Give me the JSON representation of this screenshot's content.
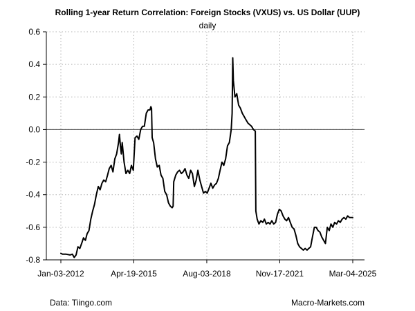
{
  "chart_data": {
    "type": "line",
    "title": "Rolling 1-year Return Correlation: Foreign Stocks (VXUS) vs. US Dollar (UUP)",
    "subtitle": "daily",
    "xlabel": "",
    "ylabel": "",
    "x_axis_type": "date",
    "xlim": [
      "2012-01-03",
      "2025-03-04"
    ],
    "ylim": [
      -0.8,
      0.6
    ],
    "y_ticks": [
      0.6,
      0.4,
      0.2,
      0.0,
      -0.2,
      -0.4,
      -0.6,
      -0.8
    ],
    "x_ticks": [
      "2012-01-03",
      "2015-04-19",
      "2018-08-03",
      "2021-11-17",
      "2025-03-04"
    ],
    "x_tick_labels": [
      "Jan-03-2012",
      "Apr-19-2015",
      "Aug-03-2018",
      "Nov-17-2021",
      "Mar-04-2025"
    ],
    "y_tick_labels": [
      "0.6",
      "0.4",
      "0.2",
      "0.0",
      "-0.2",
      "-0.4",
      "-0.6",
      "-0.8"
    ],
    "grid": true,
    "zero_line": true,
    "series": [
      {
        "points": [
          [
            "2012-01-03",
            -0.76
          ],
          [
            "2012-02-01",
            -0.765
          ],
          [
            "2012-04-01",
            -0.765
          ],
          [
            "2012-06-01",
            -0.77
          ],
          [
            "2012-07-10",
            -0.765
          ],
          [
            "2012-08-10",
            -0.785
          ],
          [
            "2012-09-10",
            -0.77
          ],
          [
            "2012-10-10",
            -0.72
          ],
          [
            "2012-11-10",
            -0.73
          ],
          [
            "2012-12-10",
            -0.7
          ],
          [
            "2013-01-10",
            -0.665
          ],
          [
            "2013-02-10",
            -0.68
          ],
          [
            "2013-03-10",
            -0.64
          ],
          [
            "2013-04-10",
            -0.62
          ],
          [
            "2013-05-10",
            -0.55
          ],
          [
            "2013-06-10",
            -0.5
          ],
          [
            "2013-07-10",
            -0.46
          ],
          [
            "2013-08-10",
            -0.4
          ],
          [
            "2013-09-10",
            -0.35
          ],
          [
            "2013-10-10",
            -0.37
          ],
          [
            "2013-11-10",
            -0.33
          ],
          [
            "2013-12-10",
            -0.31
          ],
          [
            "2014-01-10",
            -0.32
          ],
          [
            "2014-02-10",
            -0.28
          ],
          [
            "2014-03-10",
            -0.24
          ],
          [
            "2014-04-10",
            -0.22
          ],
          [
            "2014-05-10",
            -0.26
          ],
          [
            "2014-06-10",
            -0.18
          ],
          [
            "2014-07-10",
            -0.15
          ],
          [
            "2014-08-10",
            -0.08
          ],
          [
            "2014-08-25",
            -0.03
          ],
          [
            "2014-09-10",
            -0.1
          ],
          [
            "2014-09-25",
            -0.15
          ],
          [
            "2014-10-10",
            -0.08
          ],
          [
            "2014-11-10",
            -0.2
          ],
          [
            "2014-12-10",
            -0.27
          ],
          [
            "2015-01-10",
            -0.25
          ],
          [
            "2015-02-10",
            -0.27
          ],
          [
            "2015-03-10",
            -0.22
          ],
          [
            "2015-04-10",
            -0.25
          ],
          [
            "2015-05-10",
            -0.05
          ],
          [
            "2015-06-10",
            -0.04
          ],
          [
            "2015-07-10",
            -0.06
          ],
          [
            "2015-08-10",
            0.0
          ],
          [
            "2015-09-10",
            0.02
          ],
          [
            "2015-10-10",
            0.02
          ],
          [
            "2015-11-10",
            0.1
          ],
          [
            "2015-12-10",
            0.12
          ],
          [
            "2016-01-10",
            0.12
          ],
          [
            "2016-01-25",
            0.14
          ],
          [
            "2016-02-05",
            0.13
          ],
          [
            "2016-02-15",
            -0.05
          ],
          [
            "2016-03-10",
            -0.08
          ],
          [
            "2016-04-10",
            -0.18
          ],
          [
            "2016-05-10",
            -0.23
          ],
          [
            "2016-06-10",
            -0.22
          ],
          [
            "2016-07-10",
            -0.28
          ],
          [
            "2016-08-10",
            -0.3
          ],
          [
            "2016-09-10",
            -0.38
          ],
          [
            "2016-10-10",
            -0.4
          ],
          [
            "2016-11-10",
            -0.45
          ],
          [
            "2016-12-10",
            -0.47
          ],
          [
            "2017-01-10",
            -0.48
          ],
          [
            "2017-01-25",
            -0.47
          ],
          [
            "2017-02-05",
            -0.32
          ],
          [
            "2017-03-10",
            -0.28
          ],
          [
            "2017-04-10",
            -0.26
          ],
          [
            "2017-05-10",
            -0.25
          ],
          [
            "2017-06-10",
            -0.27
          ],
          [
            "2017-07-10",
            -0.26
          ],
          [
            "2017-08-10",
            -0.24
          ],
          [
            "2017-09-10",
            -0.28
          ],
          [
            "2017-10-10",
            -0.3
          ],
          [
            "2017-11-10",
            -0.25
          ],
          [
            "2017-12-10",
            -0.27
          ],
          [
            "2018-01-10",
            -0.35
          ],
          [
            "2018-02-10",
            -0.31
          ],
          [
            "2018-03-10",
            -0.25
          ],
          [
            "2018-04-10",
            -0.31
          ],
          [
            "2018-05-10",
            -0.35
          ],
          [
            "2018-06-10",
            -0.39
          ],
          [
            "2018-07-10",
            -0.38
          ],
          [
            "2018-08-10",
            -0.39
          ],
          [
            "2018-09-10",
            -0.36
          ],
          [
            "2018-10-10",
            -0.33
          ],
          [
            "2018-11-10",
            -0.36
          ],
          [
            "2018-12-10",
            -0.34
          ],
          [
            "2019-01-10",
            -0.33
          ],
          [
            "2019-02-10",
            -0.3
          ],
          [
            "2019-03-10",
            -0.25
          ],
          [
            "2019-04-10",
            -0.2
          ],
          [
            "2019-05-10",
            -0.22
          ],
          [
            "2019-06-10",
            -0.18
          ],
          [
            "2019-07-10",
            -0.1
          ],
          [
            "2019-08-10",
            -0.08
          ],
          [
            "2019-09-10",
            0.0
          ],
          [
            "2019-09-25",
            0.1
          ],
          [
            "2019-10-05",
            0.44
          ],
          [
            "2019-10-15",
            0.3
          ],
          [
            "2019-11-10",
            0.2
          ],
          [
            "2019-12-10",
            0.22
          ],
          [
            "2020-01-10",
            0.15
          ],
          [
            "2020-02-10",
            0.13
          ],
          [
            "2020-03-10",
            0.1
          ],
          [
            "2020-04-10",
            0.08
          ],
          [
            "2020-05-10",
            0.06
          ],
          [
            "2020-06-10",
            0.04
          ],
          [
            "2020-07-10",
            0.03
          ],
          [
            "2020-08-10",
            0.02
          ],
          [
            "2020-09-10",
            0.0
          ],
          [
            "2020-10-10",
            -0.01
          ],
          [
            "2020-10-20",
            -0.5
          ],
          [
            "2020-11-10",
            -0.55
          ],
          [
            "2020-12-10",
            -0.58
          ],
          [
            "2021-01-10",
            -0.56
          ],
          [
            "2021-02-10",
            -0.57
          ],
          [
            "2021-03-10",
            -0.55
          ],
          [
            "2021-04-10",
            -0.58
          ],
          [
            "2021-05-10",
            -0.57
          ],
          [
            "2021-06-10",
            -0.58
          ],
          [
            "2021-07-10",
            -0.56
          ],
          [
            "2021-08-10",
            -0.58
          ],
          [
            "2021-09-10",
            -0.57
          ],
          [
            "2021-10-10",
            -0.52
          ],
          [
            "2021-11-10",
            -0.49
          ],
          [
            "2021-12-10",
            -0.5
          ],
          [
            "2022-01-10",
            -0.53
          ],
          [
            "2022-02-10",
            -0.55
          ],
          [
            "2022-03-10",
            -0.56
          ],
          [
            "2022-04-10",
            -0.54
          ],
          [
            "2022-05-10",
            -0.57
          ],
          [
            "2022-06-10",
            -0.6
          ],
          [
            "2022-07-10",
            -0.61
          ],
          [
            "2022-08-10",
            -0.65
          ],
          [
            "2022-09-10",
            -0.7
          ],
          [
            "2022-10-10",
            -0.72
          ],
          [
            "2022-11-10",
            -0.73
          ],
          [
            "2022-12-10",
            -0.74
          ],
          [
            "2023-01-10",
            -0.73
          ],
          [
            "2023-02-10",
            -0.74
          ],
          [
            "2023-03-10",
            -0.73
          ],
          [
            "2023-04-10",
            -0.72
          ],
          [
            "2023-05-10",
            -0.66
          ],
          [
            "2023-06-10",
            -0.6
          ],
          [
            "2023-07-10",
            -0.6
          ],
          [
            "2023-08-10",
            -0.62
          ],
          [
            "2023-09-10",
            -0.63
          ],
          [
            "2023-10-10",
            -0.66
          ],
          [
            "2023-11-10",
            -0.68
          ],
          [
            "2023-12-10",
            -0.7
          ],
          [
            "2024-01-10",
            -0.6
          ],
          [
            "2024-02-10",
            -0.62
          ],
          [
            "2024-03-10",
            -0.58
          ],
          [
            "2024-04-10",
            -0.6
          ],
          [
            "2024-05-10",
            -0.57
          ],
          [
            "2024-06-10",
            -0.58
          ],
          [
            "2024-07-10",
            -0.56
          ],
          [
            "2024-08-10",
            -0.57
          ],
          [
            "2024-09-10",
            -0.55
          ],
          [
            "2024-10-10",
            -0.54
          ],
          [
            "2024-11-10",
            -0.55
          ],
          [
            "2024-12-10",
            -0.53
          ],
          [
            "2025-01-10",
            -0.54
          ],
          [
            "2025-02-10",
            -0.54
          ],
          [
            "2025-03-04",
            -0.54
          ]
        ],
        "color": "#000000"
      }
    ],
    "footer_left": "Data: Tiingo.com",
    "footer_right": "Macro-Markets.com"
  }
}
